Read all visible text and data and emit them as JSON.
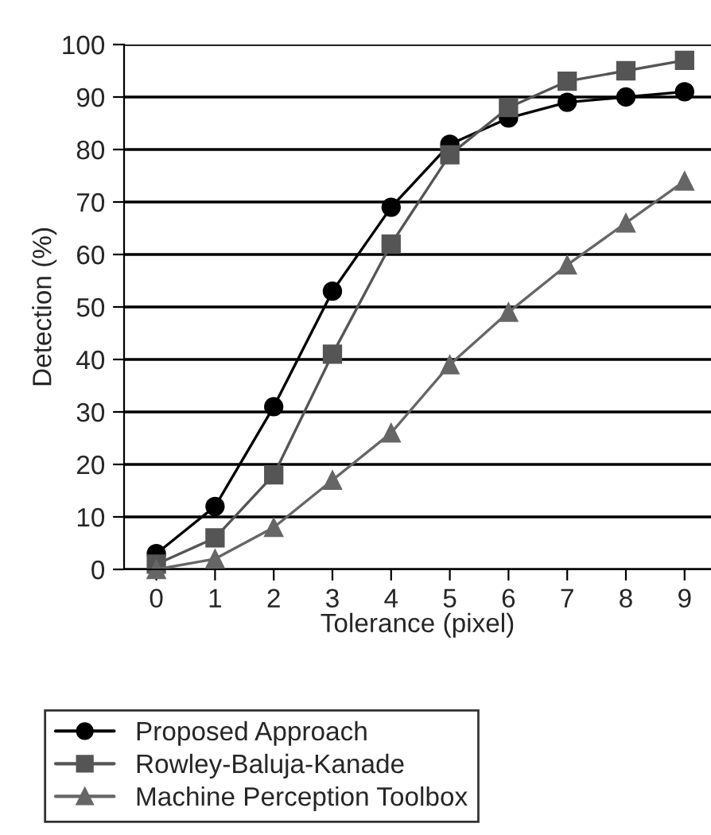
{
  "chart_data": {
    "type": "line",
    "xlabel": "Tolerance (pixel)",
    "ylabel": "Detection (%)",
    "x": [
      0,
      1,
      2,
      3,
      4,
      5,
      6,
      7,
      8,
      9
    ],
    "series": [
      {
        "name": "Proposed Approach",
        "color": "#000000",
        "marker": "circle",
        "values": [
          3,
          12,
          31,
          53,
          69,
          81,
          86,
          89,
          90,
          91
        ]
      },
      {
        "name": "Rowley-Baluja-Kanade",
        "color": "#555555",
        "marker": "square",
        "values": [
          1,
          6,
          18,
          41,
          62,
          79,
          88,
          93,
          95,
          97
        ]
      },
      {
        "name": "Machine Perception Toolbox",
        "color": "#666666",
        "marker": "triangle",
        "values": [
          0,
          2,
          8,
          17,
          26,
          39,
          49,
          58,
          66,
          74
        ]
      }
    ],
    "xlim": [
      -0.55,
      9.45
    ],
    "xticks": [
      0,
      1,
      2,
      3,
      4,
      5,
      6,
      7,
      8,
      9
    ],
    "ylim": [
      0,
      100
    ],
    "yticks": [
      0,
      10,
      20,
      30,
      40,
      50,
      60,
      70,
      80,
      90,
      100
    ],
    "grid": "y",
    "legend": "bottom",
    "line_style": "solid"
  }
}
